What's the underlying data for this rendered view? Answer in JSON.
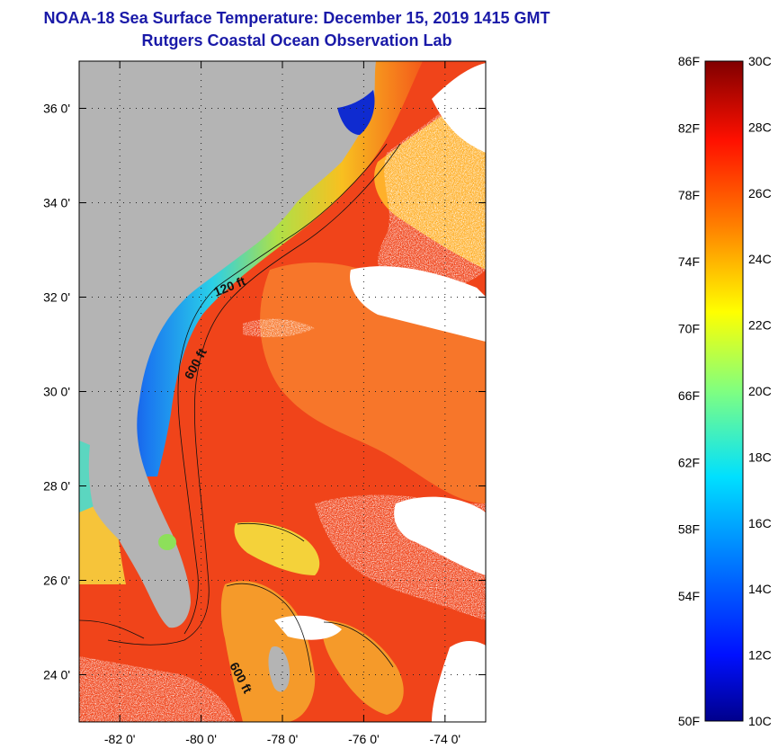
{
  "title_line1": "NOAA-18 Sea Surface Temperature:  December 15, 2019 1415 GMT",
  "title_line2": "Rutgers Coastal Ocean Observation Lab",
  "map": {
    "lon_range": [
      -83,
      -73
    ],
    "lat_range": [
      23,
      37
    ],
    "lat_ticks": [
      {
        "value": 24,
        "label": "24 0'"
      },
      {
        "value": 26,
        "label": "26 0'"
      },
      {
        "value": 28,
        "label": "28 0'"
      },
      {
        "value": 30,
        "label": "30 0'"
      },
      {
        "value": 32,
        "label": "32 0'"
      },
      {
        "value": 34,
        "label": "34 0'"
      },
      {
        "value": 36,
        "label": "36 0'"
      }
    ],
    "lon_ticks": [
      {
        "value": -82,
        "label": "-82 0'"
      },
      {
        "value": -80,
        "label": "-80 0'"
      },
      {
        "value": -78,
        "label": "-78 0'"
      },
      {
        "value": -76,
        "label": "-76 0'"
      },
      {
        "value": -74,
        "label": "-74 0'"
      }
    ],
    "contour_labels": [
      {
        "text": "120 ft"
      },
      {
        "text": "600 ft"
      },
      {
        "text": "600 ft"
      }
    ],
    "colors": {
      "land": "#b4b4b4",
      "warm_water": "#f44a1a",
      "cloud": "#ffffff"
    }
  },
  "colorbar": {
    "range_c": [
      10,
      30
    ],
    "labels_f": [
      "86F",
      "82F",
      "78F",
      "74F",
      "70F",
      "66F",
      "62F",
      "58F",
      "54F",
      "50F"
    ],
    "labels_c": [
      "30C",
      "28C",
      "26C",
      "24C",
      "22C",
      "20C",
      "18C",
      "16C",
      "14C",
      "12C",
      "10C"
    ]
  }
}
